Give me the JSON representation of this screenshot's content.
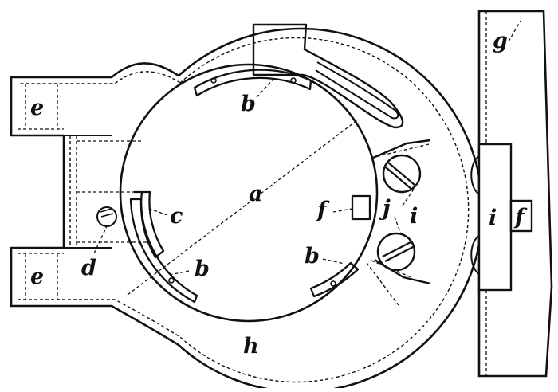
{
  "colors": {
    "ink": "#111111",
    "paper": "#ffffff"
  },
  "labels": {
    "a": "a",
    "b": "b",
    "c": "c",
    "d": "d",
    "e": "e",
    "f": "f",
    "g": "g",
    "h": "h",
    "i": "i",
    "j": "j"
  }
}
